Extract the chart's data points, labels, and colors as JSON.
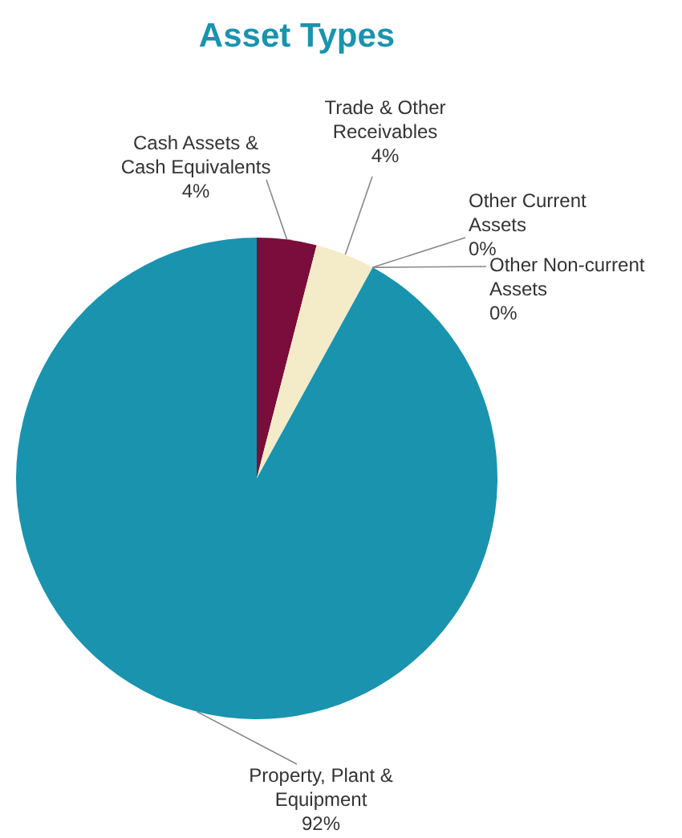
{
  "chart_data": {
    "type": "pie",
    "title": "Asset Types",
    "categories": [
      "Cash Assets & Cash Equivalents",
      "Trade & Other Receivables",
      "Other Current Assets",
      "Other Non-current Assets",
      "Property, Plant & Equipment"
    ],
    "values": [
      4,
      4,
      0,
      0,
      92
    ],
    "value_labels": [
      "4%",
      "4%",
      "0%",
      "0%",
      "92%"
    ],
    "colors": [
      "#7b0d3c",
      "#f4ecc8",
      "#cfd8a0",
      "#9fc7d0",
      "#1a93ae"
    ]
  }
}
